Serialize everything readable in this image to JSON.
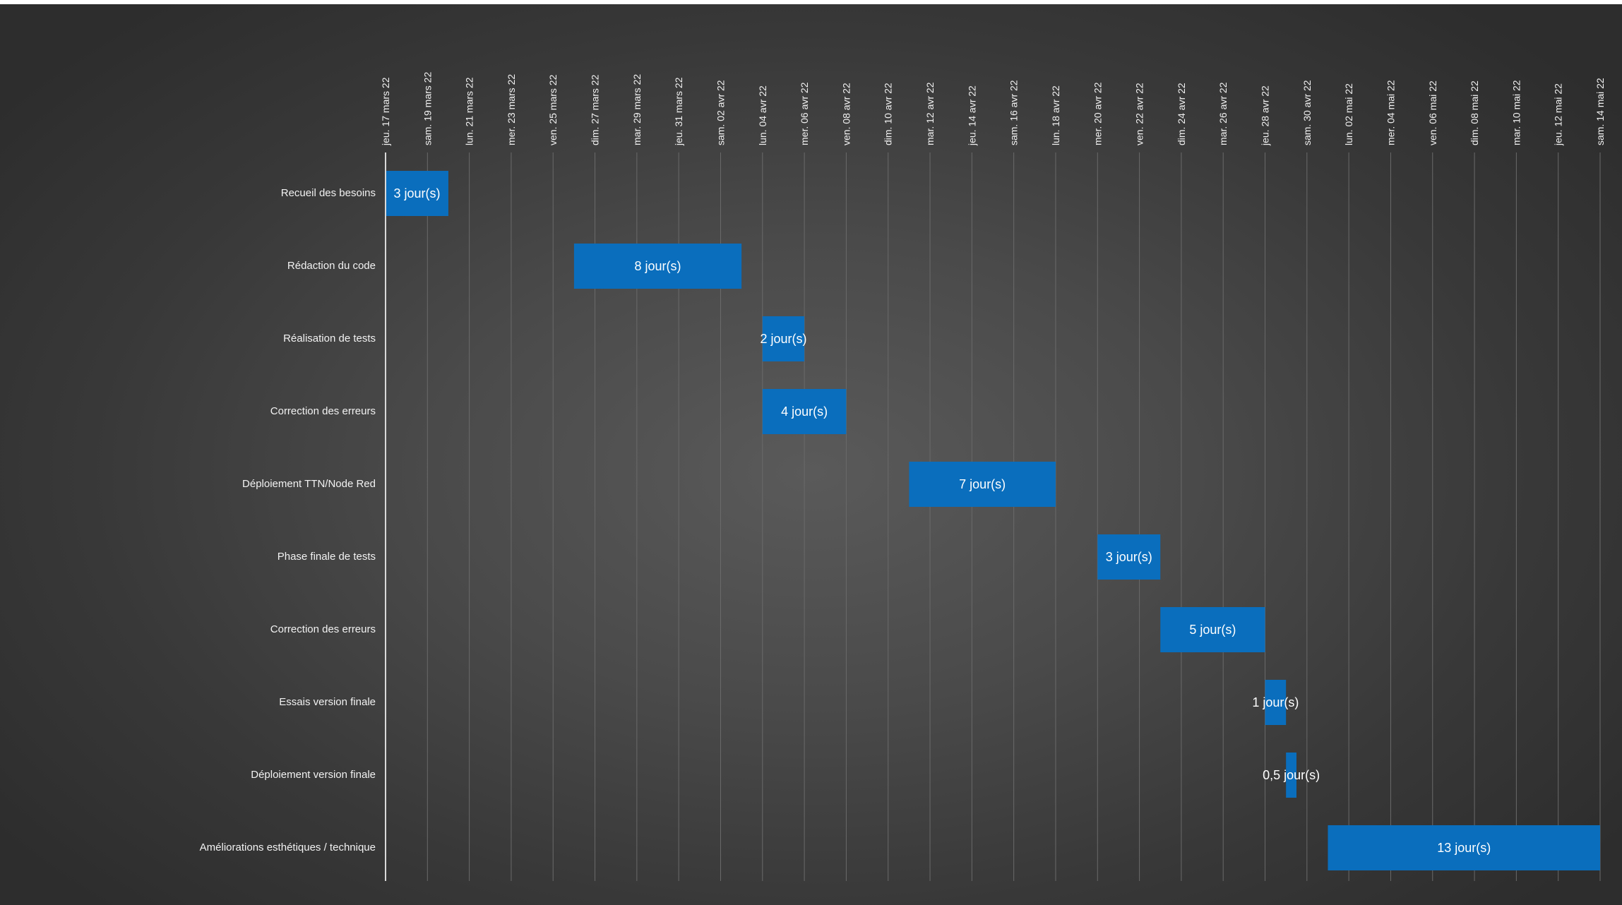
{
  "chart_data": {
    "type": "gantt",
    "title": "",
    "xlabel": "",
    "ylabel": "",
    "x_axis": {
      "position": "top",
      "range": [
        "2022-03-17",
        "2022-05-14"
      ],
      "tick_interval_days": 2,
      "tick_labels": [
        "jeu. 17 mars 22",
        "sam. 19 mars 22",
        "lun. 21 mars 22",
        "mer. 23 mars 22",
        "ven. 25 mars 22",
        "dim. 27 mars 22",
        "mar. 29 mars 22",
        "jeu. 31 mars 22",
        "sam. 02 avr 22",
        "lun. 04 avr 22",
        "mer. 06 avr 22",
        "ven. 08 avr 22",
        "dim. 10 avr 22",
        "mar. 12 avr 22",
        "jeu. 14 avr 22",
        "sam. 16 avr 22",
        "lun. 18 avr 22",
        "mer. 20 avr 22",
        "ven. 22 avr 22",
        "dim. 24 avr 22",
        "mar. 26 avr 22",
        "jeu. 28 avr 22",
        "sam. 30 avr 22",
        "lun. 02 mai 22",
        "mer. 04 mai 22",
        "ven. 06 mai 22",
        "dim. 08 mai 22",
        "mar. 10 mai 22",
        "jeu. 12 mai 22",
        "sam. 14 mai 22"
      ]
    },
    "grid": true,
    "legend": "none",
    "colors": {
      "bar": "#0a6ebd",
      "text": "#f2f2f2",
      "grid": "#6a6a6a"
    },
    "tasks": [
      {
        "name": "Recueil des besoins",
        "start": "2022-03-17",
        "end": "2022-03-20",
        "label": "3 jour(s)"
      },
      {
        "name": "Rédaction du code",
        "start": "2022-03-26",
        "end": "2022-04-03",
        "label": "8 jour(s)"
      },
      {
        "name": "Réalisation de tests",
        "start": "2022-04-04",
        "end": "2022-04-06",
        "label": "2 jour(s)"
      },
      {
        "name": "Correction des erreurs",
        "start": "2022-04-04",
        "end": "2022-04-08",
        "label": "4 jour(s)"
      },
      {
        "name": "Déploiement TTN/Node Red",
        "start": "2022-04-11",
        "end": "2022-04-18",
        "label": "7 jour(s)"
      },
      {
        "name": "Phase finale de tests",
        "start": "2022-04-20",
        "end": "2022-04-23",
        "label": "3 jour(s)"
      },
      {
        "name": "Correction des erreurs",
        "start": "2022-04-23",
        "end": "2022-04-28",
        "label": "5 jour(s)"
      },
      {
        "name": "Essais version finale",
        "start": "2022-04-28",
        "end": "2022-04-29",
        "label": "1 jour(s)"
      },
      {
        "name": "Déploiement version finale",
        "start": "2022-04-29",
        "end": "2022-04-29T12:00",
        "label": "0,5 jour(s)"
      },
      {
        "name": "Améliorations esthétiques / technique",
        "start": "2022-05-01",
        "end": "2022-05-14",
        "label": "13 jour(s)"
      }
    ]
  }
}
